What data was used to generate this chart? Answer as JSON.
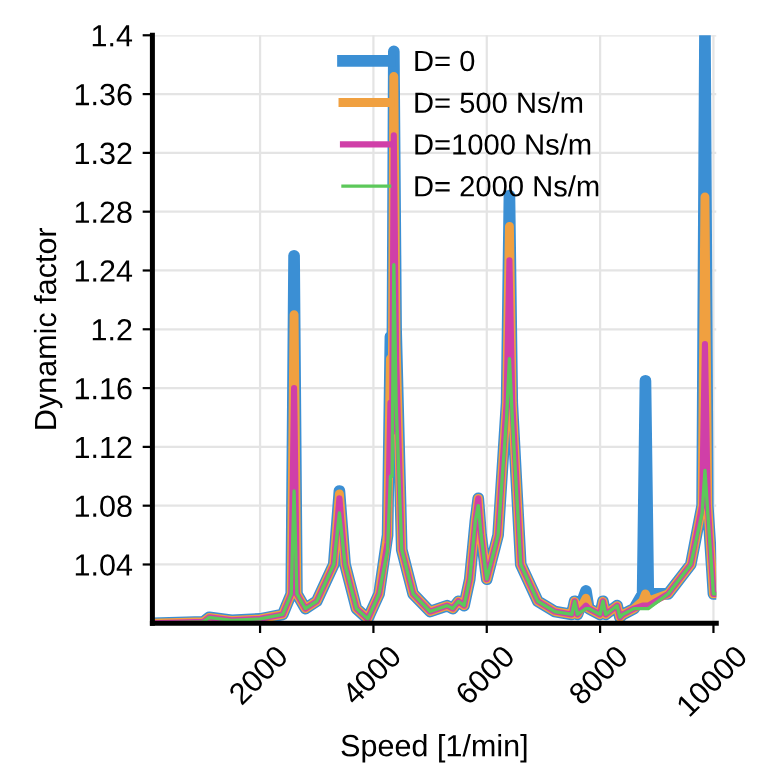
{
  "chart_data": {
    "type": "line",
    "xlabel": "Speed [1/min]",
    "ylabel": "Dynamic factor",
    "x": [
      100,
      1000,
      1100,
      1500,
      2000,
      2400,
      2550,
      2600,
      2650,
      2800,
      3000,
      3300,
      3400,
      3500,
      3700,
      3900,
      4100,
      4250,
      4300,
      4330,
      4360,
      4400,
      4500,
      4700,
      5000,
      5300,
      5400,
      5500,
      5600,
      5700,
      5800,
      5850,
      5900,
      6000,
      6200,
      6350,
      6400,
      6450,
      6600,
      6900,
      7200,
      7500,
      7550,
      7600,
      7750,
      7800,
      8000,
      8050,
      8100,
      8300,
      8350,
      8400,
      8600,
      8750,
      8800,
      8850,
      9200,
      9600,
      9800,
      9850,
      9900,
      10000,
      10050
    ],
    "series": [
      {
        "name": "D= 0",
        "color": "#3b8fd4",
        "values": [
          1.0,
          1.001,
          1.004,
          1.002,
          1.003,
          1.006,
          1.02,
          1.25,
          1.02,
          1.01,
          1.015,
          1.04,
          1.09,
          1.04,
          1.01,
          1.003,
          1.02,
          1.06,
          1.195,
          1.15,
          1.389,
          1.2,
          1.05,
          1.02,
          1.008,
          1.012,
          1.01,
          1.015,
          1.012,
          1.03,
          1.07,
          1.085,
          1.06,
          1.03,
          1.06,
          1.15,
          1.291,
          1.15,
          1.04,
          1.015,
          1.008,
          1.006,
          1.015,
          1.006,
          1.022,
          1.01,
          1.006,
          1.015,
          1.006,
          1.012,
          1.004,
          1.006,
          1.01,
          1.02,
          1.165,
          1.02,
          1.02,
          1.04,
          1.08,
          1.4,
          1.08,
          1.02,
          1.02
        ]
      },
      {
        "name": "D= 500 Ns/m",
        "color": "#f0a040",
        "values": [
          1.0,
          1.001,
          1.004,
          1.002,
          1.003,
          1.006,
          1.02,
          1.21,
          1.02,
          1.01,
          1.015,
          1.04,
          1.088,
          1.04,
          1.01,
          1.003,
          1.02,
          1.06,
          1.18,
          1.14,
          1.372,
          1.19,
          1.05,
          1.02,
          1.008,
          1.012,
          1.01,
          1.015,
          1.012,
          1.03,
          1.07,
          1.085,
          1.06,
          1.03,
          1.06,
          1.15,
          1.27,
          1.15,
          1.04,
          1.015,
          1.008,
          1.006,
          1.015,
          1.006,
          1.017,
          1.01,
          1.006,
          1.015,
          1.006,
          1.012,
          1.004,
          1.006,
          1.01,
          1.015,
          1.02,
          1.015,
          1.02,
          1.04,
          1.08,
          1.29,
          1.08,
          1.02,
          1.02
        ]
      },
      {
        "name": "D=1000 Ns/m",
        "color": "#d03fa8",
        "values": [
          1.0,
          1.001,
          1.004,
          1.002,
          1.003,
          1.006,
          1.02,
          1.16,
          1.02,
          1.01,
          1.015,
          1.04,
          1.085,
          1.04,
          1.01,
          1.003,
          1.02,
          1.055,
          1.15,
          1.13,
          1.332,
          1.18,
          1.05,
          1.02,
          1.008,
          1.012,
          1.01,
          1.015,
          1.012,
          1.03,
          1.07,
          1.085,
          1.06,
          1.03,
          1.06,
          1.15,
          1.247,
          1.15,
          1.04,
          1.015,
          1.008,
          1.006,
          1.015,
          1.006,
          1.012,
          1.01,
          1.006,
          1.015,
          1.006,
          1.012,
          1.004,
          1.006,
          1.01,
          1.012,
          1.012,
          1.012,
          1.02,
          1.04,
          1.08,
          1.19,
          1.08,
          1.02,
          1.02
        ]
      },
      {
        "name": "D= 2000 Ns/m",
        "color": "#5cc85a",
        "values": [
          1.0,
          1.001,
          1.004,
          1.002,
          1.003,
          1.006,
          1.02,
          1.09,
          1.02,
          1.01,
          1.015,
          1.04,
          1.075,
          1.04,
          1.01,
          1.003,
          1.02,
          1.05,
          1.1,
          1.1,
          1.244,
          1.15,
          1.05,
          1.02,
          1.008,
          1.012,
          1.01,
          1.015,
          1.012,
          1.03,
          1.07,
          1.08,
          1.06,
          1.03,
          1.06,
          1.14,
          1.18,
          1.14,
          1.04,
          1.015,
          1.008,
          1.006,
          1.015,
          1.006,
          1.01,
          1.01,
          1.006,
          1.015,
          1.006,
          1.012,
          1.004,
          1.006,
          1.01,
          1.01,
          1.01,
          1.01,
          1.02,
          1.04,
          1.075,
          1.104,
          1.075,
          1.02,
          1.02
        ]
      }
    ],
    "xlim": [
      100,
      10050
    ],
    "xticks": [
      2000,
      4000,
      6000,
      8000,
      10000
    ],
    "ylim": [
      1.0,
      1.4
    ],
    "yticks": [
      1.04,
      1.08,
      1.12,
      1.16,
      1.2,
      1.24,
      1.28,
      1.32,
      1.36,
      1.4
    ],
    "grid": true,
    "legend": "top right",
    "marker": "none",
    "line_style": "solid"
  }
}
